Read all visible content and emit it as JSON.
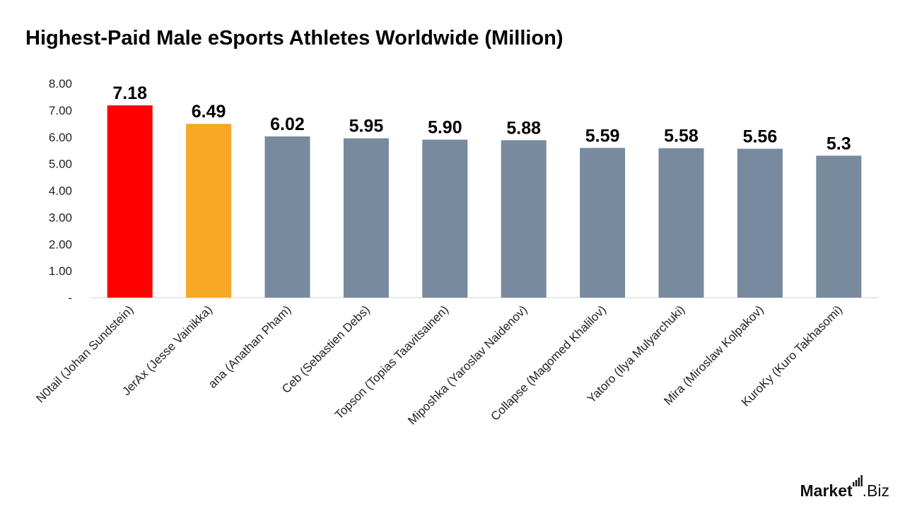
{
  "chart_data": {
    "type": "bar",
    "title": "Highest-Paid Male eSports Athletes Worldwide (Million)",
    "categories": [
      "N0tail (Johan Sundstein)",
      "JerAx (Jesse Vainikka)",
      "ana (Anathan Pham)",
      "Ceb (Sebastien Debs)",
      "Topson (Topias Taavitsainen)",
      "Miposhka (Yaroslav Naidenov)",
      "Collapse (Magomed Khalilov)",
      "Yatoro (Ilya Mulyarchuki)",
      "Mira (Miroslaw Kolpakov)",
      "KuroKy (Kuro Takhasomi)"
    ],
    "values": [
      7.18,
      6.49,
      6.02,
      5.95,
      5.9,
      5.88,
      5.59,
      5.58,
      5.56,
      5.3
    ],
    "data_labels": [
      "7.18",
      "6.49",
      "6.02",
      "5.95",
      "5.90",
      "5.88",
      "5.59",
      "5.58",
      "5.56",
      "5.3"
    ],
    "colors": [
      "#ff0000",
      "#f9a825",
      "#778a9e",
      "#778a9e",
      "#778a9e",
      "#778a9e",
      "#778a9e",
      "#778a9e",
      "#778a9e",
      "#778a9e"
    ],
    "ylim": [
      0,
      8
    ],
    "yticks": [
      0,
      1,
      2,
      3,
      4,
      5,
      6,
      7,
      8
    ],
    "ytick_labels": [
      "-",
      "1.00",
      "2.00",
      "3.00",
      "4.00",
      "5.00",
      "6.00",
      "7.00",
      "8.00"
    ],
    "xlabel": "",
    "ylabel": "",
    "grid": false,
    "legend": "none"
  },
  "brand": {
    "part1": "Market",
    "part2": ".Biz"
  }
}
